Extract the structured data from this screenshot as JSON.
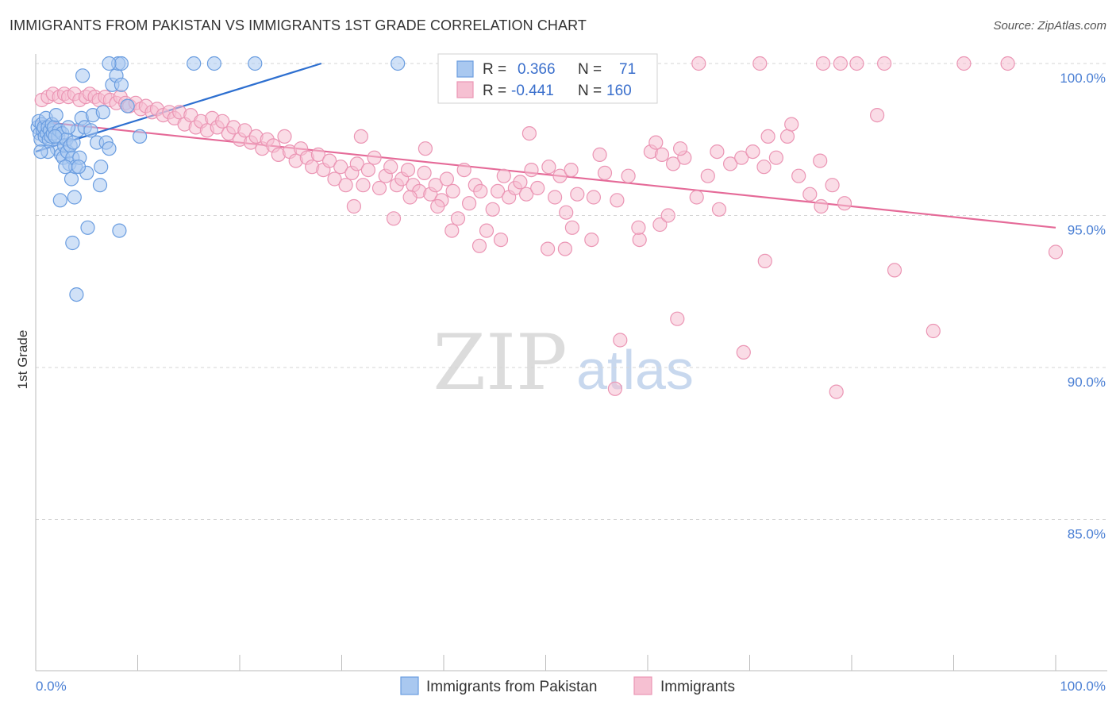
{
  "title": "IMMIGRANTS FROM PAKISTAN VS IMMIGRANTS 1ST GRADE CORRELATION CHART",
  "source": "Source: ZipAtlas.com",
  "watermark": {
    "zip": "ZIP",
    "atlas": "atlas"
  },
  "colors": {
    "blue_fill": "#a9c8f0",
    "blue_stroke": "#6a9de0",
    "blue_line": "#2d6fd0",
    "pink_fill": "#f6c0d2",
    "pink_stroke": "#eb95b4",
    "pink_line": "#e56a98",
    "grid": "#d6d6d6",
    "axis_text": "#4a7fd4"
  },
  "legend": {
    "rows": [
      {
        "r_label": "R =",
        "r_value": "0.366",
        "n_label": "N =",
        "n_value": "71"
      },
      {
        "r_label": "R =",
        "r_value": "-0.441",
        "n_label": "N =",
        "n_value": "160"
      }
    ]
  },
  "chart_data": {
    "type": "scatter",
    "title": "IMMIGRANTS FROM PAKISTAN VS IMMIGRANTS 1ST GRADE CORRELATION CHART",
    "xlabel": "",
    "ylabel": "1st Grade",
    "xlim": [
      0,
      100
    ],
    "ylim": [
      80.5,
      100.5
    ],
    "x_tick_labels": [
      "0.0%",
      "100.0%"
    ],
    "y_ticks": [
      85,
      90,
      95,
      100
    ],
    "y_tick_labels": [
      "85.0%",
      "90.0%",
      "95.0%",
      "100.0%"
    ],
    "grid": "dashed-horizontal",
    "legend_position": "top-center",
    "series": [
      {
        "name": "Immigrants from Pakistan",
        "color": "#a9c8f0",
        "trend": {
          "x": [
            0,
            28
          ],
          "y": [
            97.1,
            100
          ]
        },
        "points": [
          [
            0.2,
            97.9
          ],
          [
            0.3,
            98.1
          ],
          [
            0.4,
            97.7
          ],
          [
            0.5,
            97.5
          ],
          [
            0.6,
            98.0
          ],
          [
            0.7,
            97.8
          ],
          [
            0.8,
            97.9
          ],
          [
            0.9,
            97.6
          ],
          [
            1.0,
            98.2
          ],
          [
            1.1,
            97.7
          ],
          [
            1.2,
            97.9
          ],
          [
            1.3,
            97.5
          ],
          [
            1.4,
            97.8
          ],
          [
            1.5,
            97.6
          ],
          [
            1.6,
            98.0
          ],
          [
            1.7,
            97.7
          ],
          [
            1.8,
            97.9
          ],
          [
            2.0,
            98.3
          ],
          [
            2.1,
            97.2
          ],
          [
            2.2,
            97.6
          ],
          [
            2.3,
            97.8
          ],
          [
            2.5,
            97.0
          ],
          [
            2.6,
            97.7
          ],
          [
            2.7,
            96.9
          ],
          [
            2.8,
            97.3
          ],
          [
            3.0,
            97.5
          ],
          [
            3.1,
            97.1
          ],
          [
            3.3,
            96.7
          ],
          [
            3.4,
            97.3
          ],
          [
            3.5,
            96.2
          ],
          [
            3.6,
            96.9
          ],
          [
            3.7,
            97.4
          ],
          [
            3.9,
            96.6
          ],
          [
            4.1,
            97.8
          ],
          [
            4.3,
            96.9
          ],
          [
            4.5,
            98.2
          ],
          [
            4.6,
            99.6
          ],
          [
            4.8,
            97.9
          ],
          [
            5.0,
            96.4
          ],
          [
            5.1,
            94.6
          ],
          [
            5.4,
            97.8
          ],
          [
            5.6,
            98.3
          ],
          [
            6.0,
            97.4
          ],
          [
            6.3,
            96.0
          ],
          [
            6.4,
            96.6
          ],
          [
            6.9,
            97.4
          ],
          [
            7.2,
            97.2
          ],
          [
            7.5,
            99.3
          ],
          [
            7.9,
            99.6
          ],
          [
            8.2,
            94.5
          ],
          [
            8.4,
            99.3
          ],
          [
            9.0,
            98.6
          ],
          [
            10.2,
            97.6
          ],
          [
            2.4,
            95.5
          ],
          [
            3.6,
            94.1
          ],
          [
            3.8,
            95.6
          ],
          [
            4.0,
            92.4
          ],
          [
            1.2,
            97.1
          ],
          [
            2.9,
            96.6
          ],
          [
            1.9,
            97.6
          ],
          [
            15.5,
            100.0
          ],
          [
            17.5,
            100.0
          ],
          [
            21.5,
            100.0
          ],
          [
            35.5,
            100.0
          ],
          [
            0.5,
            97.1
          ],
          [
            6.6,
            98.4
          ],
          [
            3.2,
            97.9
          ],
          [
            8.1,
            100.0
          ],
          [
            8.4,
            100.0
          ],
          [
            7.2,
            100.0
          ],
          [
            4.2,
            96.6
          ]
        ]
      },
      {
        "name": "Immigrants",
        "color": "#f6c0d2",
        "trend": {
          "x": [
            0,
            100
          ],
          "y": [
            98.1,
            94.6
          ]
        },
        "points": [
          [
            0.6,
            98.8
          ],
          [
            1.2,
            98.9
          ],
          [
            1.7,
            99.0
          ],
          [
            2.3,
            98.9
          ],
          [
            2.8,
            99.0
          ],
          [
            3.2,
            98.9
          ],
          [
            3.8,
            99.0
          ],
          [
            4.3,
            98.8
          ],
          [
            4.9,
            98.9
          ],
          [
            5.3,
            99.0
          ],
          [
            5.8,
            98.9
          ],
          [
            6.2,
            98.8
          ],
          [
            6.8,
            98.9
          ],
          [
            7.3,
            98.8
          ],
          [
            7.9,
            98.7
          ],
          [
            8.3,
            98.9
          ],
          [
            8.8,
            98.7
          ],
          [
            9.2,
            98.6
          ],
          [
            9.8,
            98.7
          ],
          [
            10.3,
            98.5
          ],
          [
            10.8,
            98.6
          ],
          [
            11.4,
            98.4
          ],
          [
            11.9,
            98.5
          ],
          [
            12.5,
            98.3
          ],
          [
            13.1,
            98.4
          ],
          [
            13.6,
            98.2
          ],
          [
            14.1,
            98.4
          ],
          [
            14.6,
            98.0
          ],
          [
            15.2,
            98.3
          ],
          [
            15.7,
            97.9
          ],
          [
            16.2,
            98.1
          ],
          [
            16.8,
            97.8
          ],
          [
            17.3,
            98.2
          ],
          [
            17.8,
            97.9
          ],
          [
            18.3,
            98.1
          ],
          [
            18.9,
            97.7
          ],
          [
            19.4,
            97.9
          ],
          [
            20.0,
            97.5
          ],
          [
            20.5,
            97.8
          ],
          [
            21.1,
            97.4
          ],
          [
            21.6,
            97.6
          ],
          [
            22.2,
            97.2
          ],
          [
            22.7,
            97.5
          ],
          [
            23.3,
            97.3
          ],
          [
            23.8,
            97.0
          ],
          [
            24.4,
            97.6
          ],
          [
            24.9,
            97.1
          ],
          [
            25.5,
            96.8
          ],
          [
            26.0,
            97.2
          ],
          [
            26.6,
            96.9
          ],
          [
            27.1,
            96.6
          ],
          [
            27.7,
            97.0
          ],
          [
            28.2,
            96.5
          ],
          [
            28.8,
            96.8
          ],
          [
            29.3,
            96.2
          ],
          [
            29.9,
            96.6
          ],
          [
            30.4,
            96.0
          ],
          [
            31.0,
            96.4
          ],
          [
            31.5,
            96.7
          ],
          [
            32.1,
            96.0
          ],
          [
            32.6,
            96.5
          ],
          [
            33.2,
            96.9
          ],
          [
            33.7,
            95.9
          ],
          [
            34.3,
            96.3
          ],
          [
            34.8,
            96.6
          ],
          [
            35.4,
            96.0
          ],
          [
            35.9,
            96.2
          ],
          [
            36.5,
            96.5
          ],
          [
            37.0,
            96.0
          ],
          [
            37.6,
            95.8
          ],
          [
            38.1,
            96.4
          ],
          [
            38.7,
            95.7
          ],
          [
            39.2,
            96.0
          ],
          [
            39.8,
            95.5
          ],
          [
            40.3,
            96.2
          ],
          [
            40.9,
            95.8
          ],
          [
            41.4,
            94.9
          ],
          [
            42.0,
            96.5
          ],
          [
            42.5,
            95.4
          ],
          [
            43.1,
            96.0
          ],
          [
            43.6,
            95.8
          ],
          [
            44.2,
            94.5
          ],
          [
            44.8,
            95.2
          ],
          [
            45.3,
            95.8
          ],
          [
            45.9,
            96.3
          ],
          [
            46.4,
            95.6
          ],
          [
            47.0,
            95.9
          ],
          [
            47.5,
            96.1
          ],
          [
            48.1,
            95.7
          ],
          [
            48.6,
            96.5
          ],
          [
            49.2,
            95.9
          ],
          [
            50.3,
            96.6
          ],
          [
            50.9,
            95.6
          ],
          [
            51.4,
            96.3
          ],
          [
            52.0,
            95.1
          ],
          [
            52.5,
            96.5
          ],
          [
            53.1,
            95.7
          ],
          [
            54.7,
            95.6
          ],
          [
            55.8,
            96.4
          ],
          [
            57.0,
            95.5
          ],
          [
            58.1,
            96.3
          ],
          [
            59.2,
            94.2
          ],
          [
            60.3,
            97.1
          ],
          [
            61.4,
            97.0
          ],
          [
            62.5,
            96.7
          ],
          [
            63.6,
            96.9
          ],
          [
            64.8,
            95.6
          ],
          [
            65.9,
            96.3
          ],
          [
            67.0,
            95.2
          ],
          [
            68.1,
            96.7
          ],
          [
            69.2,
            96.9
          ],
          [
            70.3,
            97.1
          ],
          [
            71.4,
            96.6
          ],
          [
            72.6,
            96.9
          ],
          [
            73.7,
            97.6
          ],
          [
            74.8,
            96.3
          ],
          [
            75.9,
            95.7
          ],
          [
            77.0,
            95.3
          ],
          [
            78.1,
            96.0
          ],
          [
            79.3,
            95.4
          ],
          [
            38.2,
            97.2
          ],
          [
            31.9,
            97.6
          ],
          [
            48.4,
            97.7
          ],
          [
            55.3,
            97.0
          ],
          [
            60.8,
            97.4
          ],
          [
            63.2,
            97.2
          ],
          [
            66.8,
            97.1
          ],
          [
            71.8,
            97.6
          ],
          [
            74.1,
            98.0
          ],
          [
            76.9,
            96.8
          ],
          [
            82.5,
            98.3
          ],
          [
            50.2,
            93.9
          ],
          [
            52.6,
            94.6
          ],
          [
            54.5,
            94.2
          ],
          [
            61.2,
            94.7
          ],
          [
            71.5,
            93.5
          ],
          [
            84.2,
            93.2
          ],
          [
            80.5,
            100.0
          ],
          [
            100.0,
            93.8
          ],
          [
            57.3,
            90.9
          ],
          [
            62.9,
            91.6
          ],
          [
            69.4,
            90.5
          ],
          [
            78.5,
            89.2
          ],
          [
            56.8,
            89.3
          ],
          [
            88.0,
            91.2
          ],
          [
            65.0,
            100.0
          ],
          [
            71.0,
            100.0
          ],
          [
            77.2,
            100.0
          ],
          [
            78.9,
            100.0
          ],
          [
            83.2,
            100.0
          ],
          [
            91.0,
            100.0
          ],
          [
            95.3,
            100.0
          ],
          [
            39.4,
            95.3
          ],
          [
            36.7,
            95.6
          ],
          [
            31.2,
            95.3
          ],
          [
            35.1,
            94.9
          ],
          [
            40.8,
            94.5
          ],
          [
            43.5,
            94.0
          ],
          [
            45.6,
            94.2
          ],
          [
            51.9,
            93.9
          ],
          [
            59.1,
            94.6
          ],
          [
            62.0,
            95.0
          ]
        ]
      }
    ],
    "bottom_legend": [
      "Immigrants from Pakistan",
      "Immigrants"
    ]
  }
}
